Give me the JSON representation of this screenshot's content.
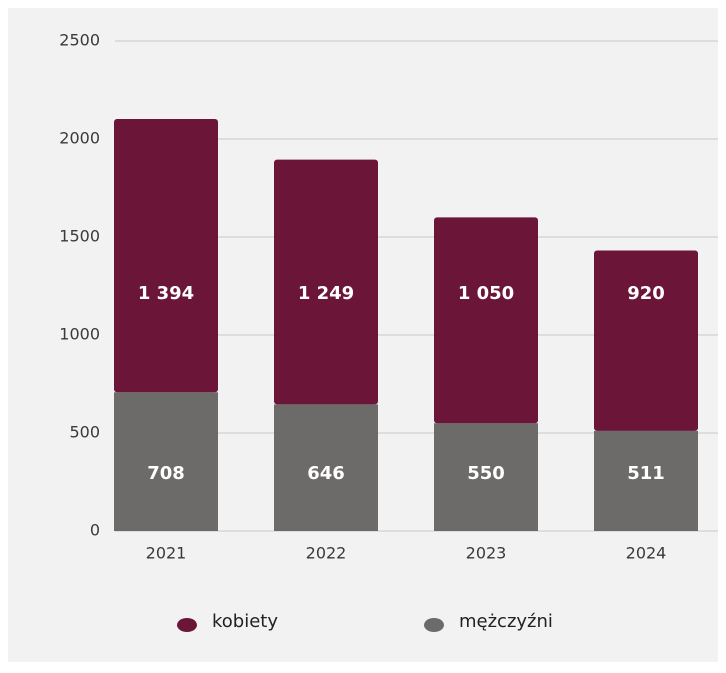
{
  "chart_data": {
    "type": "stacked_bar",
    "categories": [
      "2021",
      "2022",
      "2023",
      "2024"
    ],
    "series": [
      {
        "name": "kobiety",
        "color": "#6b1538",
        "values": [
          1394,
          1249,
          1050,
          920
        ],
        "value_labels": [
          "1 394",
          "1 249",
          "1 050",
          "920"
        ]
      },
      {
        "name": "mężczyźni",
        "color": "#6d6a6a",
        "values": [
          708,
          646,
          550,
          511
        ]
      }
    ],
    "ylim": [
      0,
      2500
    ],
    "yticks": [
      0,
      500,
      1000,
      1500,
      2000,
      2500
    ],
    "grid": true,
    "legend": "bottom"
  }
}
